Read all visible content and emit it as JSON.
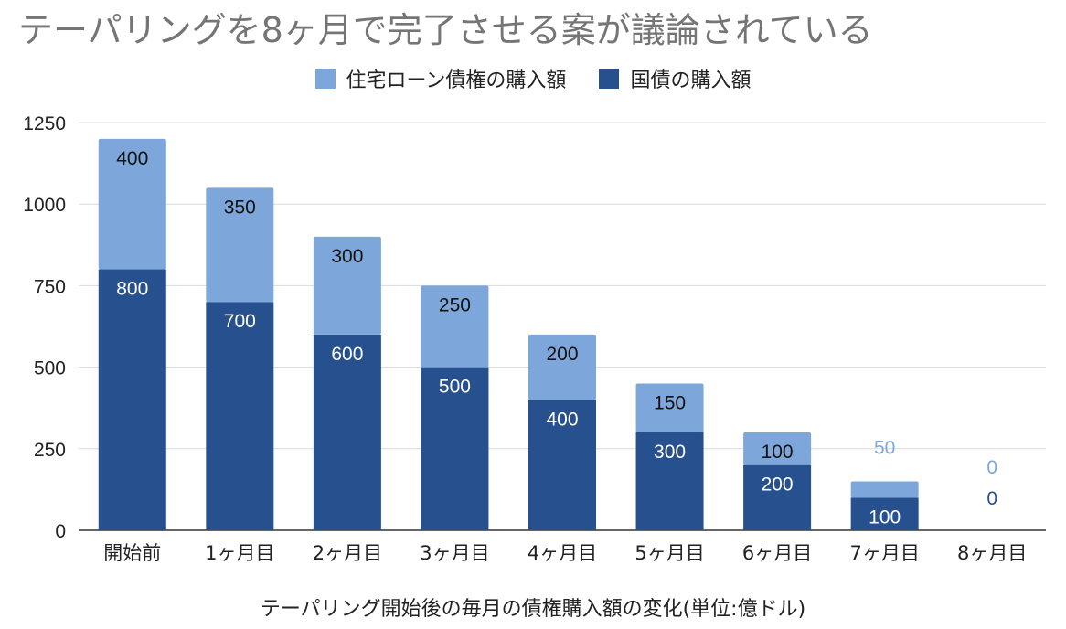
{
  "chart_data": {
    "type": "bar",
    "stacked": true,
    "title": "テーパリングを8ヶ月で完了させる案が議論されている",
    "xlabel": "テーパリング開始後の毎月の債権購入額の変化(単位:億ドル)",
    "ylabel": "",
    "ylim": [
      0,
      1250
    ],
    "yticks": [
      0,
      250,
      500,
      750,
      1000,
      1250
    ],
    "grid": true,
    "legend_position": "top",
    "categories": [
      "開始前",
      "1ヶ月目",
      "2ヶ月目",
      "3ヶ月目",
      "4ヶ月目",
      "5ヶ月目",
      "6ヶ月目",
      "7ヶ月目",
      "8ヶ月目"
    ],
    "series": [
      {
        "name": "国債の購入額",
        "color": "#27518e",
        "values": [
          800,
          700,
          600,
          500,
          400,
          300,
          200,
          100,
          0
        ]
      },
      {
        "name": "住宅ローン債権の購入額",
        "color": "#7da7db",
        "values": [
          400,
          350,
          300,
          250,
          200,
          150,
          100,
          50,
          0
        ]
      }
    ]
  }
}
